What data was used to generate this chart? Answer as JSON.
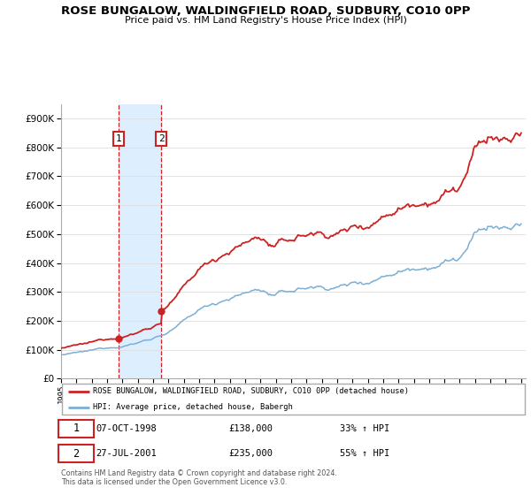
{
  "title": "ROSE BUNGALOW, WALDINGFIELD ROAD, SUDBURY, CO10 0PP",
  "subtitle": "Price paid vs. HM Land Registry's House Price Index (HPI)",
  "sale1_date": "07-OCT-1998",
  "sale1_year": 1998.75,
  "sale1_price": 138000,
  "sale1_hpi": "33% ↑ HPI",
  "sale2_date": "27-JUL-2001",
  "sale2_year": 2001.54,
  "sale2_price": 235000,
  "sale2_hpi": "55% ↑ HPI",
  "legend_red": "ROSE BUNGALOW, WALDINGFIELD ROAD, SUDBURY, CO10 0PP (detached house)",
  "legend_blue": "HPI: Average price, detached house, Babergh",
  "footer": "Contains HM Land Registry data © Crown copyright and database right 2024.\nThis data is licensed under the Open Government Licence v3.0.",
  "red_color": "#cc2222",
  "blue_color": "#7bafd4",
  "shaded_color": "#ddeeff",
  "ylim_max": 950000,
  "ylim_min": 0,
  "yticks": [
    0,
    100000,
    200000,
    300000,
    400000,
    500000,
    600000,
    700000,
    800000,
    900000
  ],
  "xmin": 1995,
  "xmax": 2025.3
}
